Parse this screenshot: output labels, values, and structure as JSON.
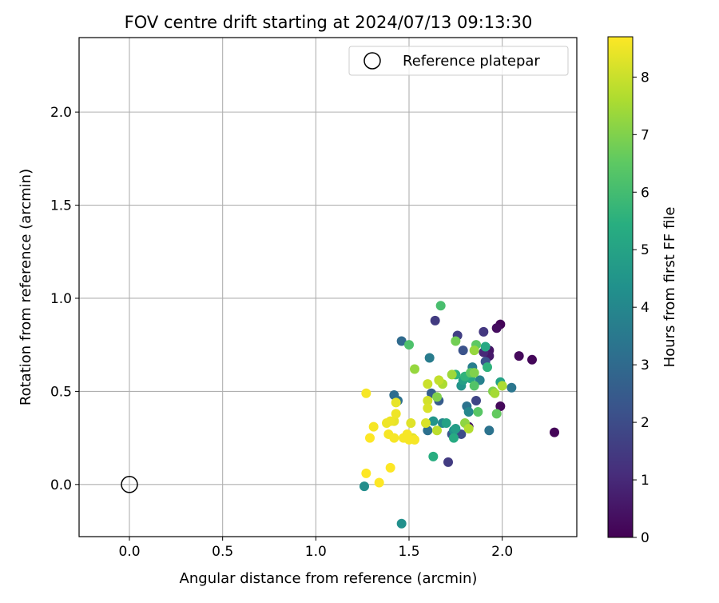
{
  "chart_data": {
    "type": "scatter",
    "title": "FOV centre drift starting at 2024/07/13 09:13:30",
    "xlabel": "Angular distance from reference (arcmin)",
    "ylabel": "Rotation from reference (arcmin)",
    "xlim": [
      -0.27,
      2.4
    ],
    "ylim": [
      -0.28,
      2.4
    ],
    "x_ticks": [
      "0.0",
      "0.5",
      "1.0",
      "1.5",
      "2.0"
    ],
    "y_ticks": [
      "0.0",
      "0.5",
      "1.0",
      "1.5",
      "2.0"
    ],
    "grid": true,
    "legend": {
      "placement": "top-right",
      "entries": [
        "Reference platepar"
      ]
    },
    "reference_point": {
      "name": "Reference platepar",
      "x": 0.0,
      "y": 0.0
    },
    "colorbar": {
      "label": "Hours from first FF file",
      "range": [
        0,
        8.7
      ],
      "ticks": [
        "0",
        "1",
        "2",
        "3",
        "4",
        "5",
        "6",
        "7",
        "8"
      ],
      "colormap": "viridis"
    },
    "series": [
      {
        "points": [
          [
            2.28,
            0.28,
            0.1
          ],
          [
            2.16,
            0.67,
            0.15
          ],
          [
            2.09,
            0.69,
            0.2
          ],
          [
            1.99,
            0.86,
            0.1
          ],
          [
            1.97,
            0.84,
            0.3
          ],
          [
            1.99,
            0.42,
            0.2
          ],
          [
            1.93,
            0.72,
            0.5
          ],
          [
            1.93,
            0.69,
            0.6
          ],
          [
            1.82,
            0.31,
            0.5
          ],
          [
            1.9,
            0.82,
            1.4
          ],
          [
            1.9,
            0.71,
            1.0
          ],
          [
            1.76,
            0.8,
            1.6
          ],
          [
            1.64,
            0.88,
            1.5
          ],
          [
            1.71,
            0.12,
            1.5
          ],
          [
            1.86,
            0.45,
            1.8
          ],
          [
            1.78,
            0.27,
            2.0
          ],
          [
            1.91,
            0.66,
            2.2
          ],
          [
            1.79,
            0.72,
            2.2
          ],
          [
            1.73,
            0.27,
            2.3
          ],
          [
            1.66,
            0.45,
            2.5
          ],
          [
            1.62,
            0.49,
            2.6
          ],
          [
            1.46,
            0.77,
            3.0
          ],
          [
            1.42,
            0.48,
            3.1
          ],
          [
            1.44,
            0.45,
            3.2
          ],
          [
            1.6,
            0.29,
            3.2
          ],
          [
            1.81,
            0.42,
            3.3
          ],
          [
            1.93,
            0.29,
            3.3
          ],
          [
            2.05,
            0.52,
            3.4
          ],
          [
            1.61,
            0.68,
            3.6
          ],
          [
            1.84,
            0.63,
            3.7
          ],
          [
            1.88,
            0.56,
            3.8
          ],
          [
            1.68,
            0.33,
            4.0
          ],
          [
            1.82,
            0.39,
            4.0
          ],
          [
            1.26,
            -0.01,
            4.2
          ],
          [
            1.46,
            -0.21,
            4.3
          ],
          [
            1.74,
            0.29,
            4.4
          ],
          [
            1.63,
            0.34,
            4.5
          ],
          [
            1.78,
            0.53,
            4.5
          ],
          [
            1.75,
            0.3,
            4.8
          ],
          [
            1.79,
            0.56,
            4.9
          ],
          [
            1.7,
            0.33,
            5.0
          ],
          [
            1.99,
            0.55,
            5.0
          ],
          [
            1.83,
            0.57,
            5.2
          ],
          [
            1.91,
            0.74,
            5.2
          ],
          [
            1.63,
            0.15,
            5.4
          ],
          [
            1.75,
            0.59,
            5.5
          ],
          [
            1.74,
            0.25,
            5.3
          ],
          [
            1.92,
            0.63,
            5.6
          ],
          [
            1.8,
            0.58,
            5.6
          ],
          [
            1.67,
            0.96,
            6.1
          ],
          [
            1.5,
            0.75,
            6.2
          ],
          [
            1.85,
            0.53,
            6.3
          ],
          [
            1.87,
            0.39,
            6.4
          ],
          [
            1.86,
            0.75,
            6.5
          ],
          [
            1.83,
            0.6,
            6.5
          ],
          [
            1.97,
            0.38,
            6.6
          ],
          [
            1.75,
            0.77,
            6.8
          ],
          [
            1.65,
            0.47,
            7.0
          ],
          [
            1.85,
            0.6,
            7.0
          ],
          [
            1.95,
            0.5,
            7.0
          ],
          [
            1.8,
            0.33,
            7.2
          ],
          [
            1.53,
            0.62,
            7.3
          ],
          [
            1.85,
            0.72,
            7.3
          ],
          [
            1.73,
            0.59,
            7.4
          ],
          [
            1.96,
            0.49,
            7.5
          ],
          [
            2.0,
            0.53,
            7.6
          ],
          [
            1.68,
            0.54,
            7.6
          ],
          [
            1.82,
            0.3,
            7.7
          ],
          [
            1.65,
            0.29,
            7.8
          ],
          [
            1.66,
            0.56,
            7.9
          ],
          [
            1.6,
            0.54,
            8.0
          ],
          [
            1.6,
            0.45,
            8.1
          ],
          [
            1.6,
            0.41,
            8.2
          ],
          [
            1.59,
            0.33,
            8.2
          ],
          [
            1.51,
            0.33,
            8.3
          ],
          [
            1.52,
            0.25,
            8.3
          ],
          [
            1.43,
            0.44,
            8.4
          ],
          [
            1.42,
            0.34,
            8.4
          ],
          [
            1.43,
            0.38,
            8.5
          ],
          [
            1.4,
            0.34,
            8.5
          ],
          [
            1.38,
            0.33,
            8.5
          ],
          [
            1.39,
            0.27,
            8.6
          ],
          [
            1.42,
            0.25,
            8.6
          ],
          [
            1.47,
            0.25,
            8.6
          ],
          [
            1.49,
            0.27,
            8.6
          ],
          [
            1.5,
            0.24,
            8.6
          ],
          [
            1.53,
            0.24,
            8.6
          ],
          [
            1.27,
            0.49,
            8.6
          ],
          [
            1.31,
            0.31,
            8.6
          ],
          [
            1.29,
            0.25,
            8.7
          ],
          [
            1.27,
            0.06,
            8.7
          ],
          [
            1.4,
            0.09,
            8.7
          ],
          [
            1.34,
            0.01,
            8.7
          ]
        ]
      }
    ]
  }
}
